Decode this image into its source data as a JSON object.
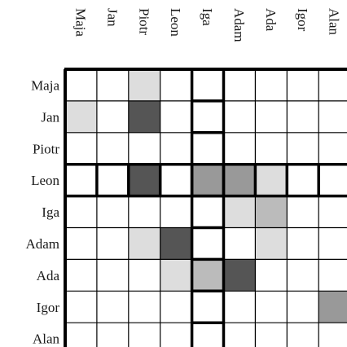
{
  "matrix": {
    "row_labels": [
      "Maja",
      "Jan",
      "Piotr",
      "Leon",
      "Iga",
      "Adam",
      "Ada",
      "Igor",
      "Alan"
    ],
    "col_labels": [
      "Maja",
      "Jan",
      "Piotr",
      "Leon",
      "Iga",
      "Adam",
      "Ada",
      "Igor",
      "Alan"
    ],
    "highlight_row": "Leon",
    "highlight_col": "Iga",
    "shade_colors": {
      "0": "#ffffff",
      "1": "#dddddd",
      "2": "#bbbbbb",
      "3": "#999999",
      "4": "#555555"
    },
    "cells": [
      [
        0,
        0,
        1,
        0,
        0,
        0,
        0,
        0,
        0
      ],
      [
        1,
        0,
        4,
        0,
        0,
        0,
        0,
        0,
        0
      ],
      [
        0,
        0,
        0,
        0,
        0,
        0,
        0,
        0,
        0
      ],
      [
        0,
        0,
        4,
        0,
        3,
        3,
        1,
        0,
        0
      ],
      [
        0,
        0,
        0,
        0,
        0,
        1,
        2,
        0,
        0
      ],
      [
        0,
        0,
        1,
        4,
        0,
        0,
        1,
        0,
        0
      ],
      [
        0,
        0,
        0,
        1,
        2,
        4,
        0,
        0,
        0
      ],
      [
        0,
        0,
        0,
        0,
        0,
        0,
        0,
        0,
        3
      ],
      [
        0,
        0,
        0,
        0,
        0,
        0,
        0,
        0,
        0
      ]
    ]
  }
}
